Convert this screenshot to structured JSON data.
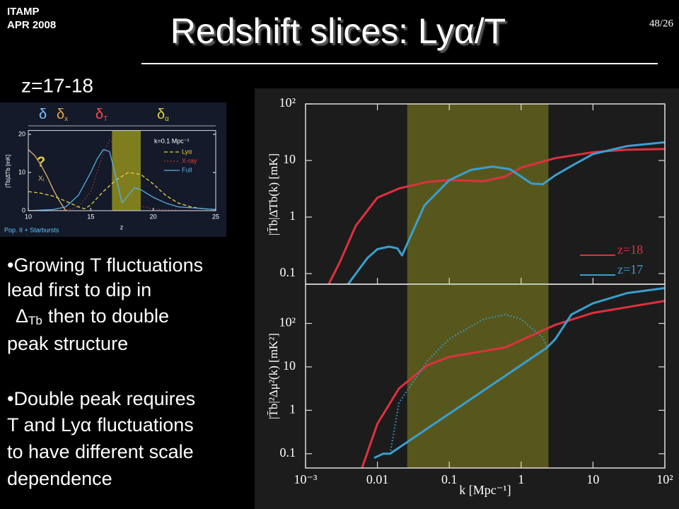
{
  "header": {
    "org": "ITAMP",
    "date": "APR 2008",
    "title": "Redshift slices: Lyα/T",
    "page": "48/26",
    "subtitle": "z=17-18"
  },
  "bullets": [
    {
      "lines": [
        "•Growing T fluctuations",
        "lead first to dip in"
      ],
      "sym": "Δ",
      "sub": "Tb",
      "tail": "then to double",
      "last": "peak structure"
    },
    {
      "first": "•Double peak requires",
      "pre": "T and Ly",
      "sym": "α",
      "post": "fluctuations",
      "lines": [
        "to have different scale",
        "dependence"
      ]
    }
  ],
  "chart_data": [
    {
      "type": "line",
      "xscale": "linear",
      "yscale": "linear",
      "xlim": [
        10,
        25
      ],
      "ylim": [
        0,
        21
      ],
      "xticks": [
        10,
        15,
        20,
        25
      ],
      "yticks": [
        0,
        10,
        20
      ],
      "xlabel": "z",
      "ylabel": "|T̄b|Δ̄Tb [mK]",
      "band": [
        16.7,
        19
      ],
      "band_color": "#8a8a1e",
      "annotations": {
        "k": "k=0.1 Mpc⁻¹",
        "q": "?",
        "xi": "Xᵢ",
        "pop": "Pop. II + Starbursts"
      },
      "greek": [
        {
          "text": "δ",
          "color": "#7fc4ff"
        },
        {
          "text": "δ",
          "sub": "x",
          "color": "#e0a850"
        },
        {
          "text": "δ",
          "sub": "T",
          "color": "#ff4a4a"
        },
        {
          "text": "δ",
          "sub": "α",
          "color": "#e0d040"
        }
      ],
      "series": [
        {
          "color": "#e8b070",
          "style": "solid",
          "x": [
            10,
            10.5,
            11,
            11.5,
            12,
            12.5,
            13
          ],
          "values": [
            16,
            14.5,
            12,
            9,
            5.5,
            2.5,
            0
          ]
        },
        {
          "name": "Lyα",
          "color": "#e8d040",
          "style": "dashed",
          "x": [
            10,
            11,
            12,
            13,
            14,
            14.5,
            15,
            16,
            17,
            18,
            19,
            20,
            21,
            22,
            23,
            24,
            25
          ],
          "values": [
            5,
            4.6,
            3.8,
            2.5,
            1,
            0.5,
            1.5,
            5,
            8,
            10,
            9.5,
            7,
            4,
            2,
            1,
            0.5,
            0.3
          ]
        },
        {
          "name": "X-ray",
          "color": "#e04040",
          "style": "dotted",
          "x": [
            10,
            13,
            14,
            15,
            15.5,
            16,
            16.5,
            17,
            17.5,
            18,
            19,
            20,
            22,
            25
          ],
          "values": [
            0,
            0.2,
            1,
            5,
            10,
            15,
            18.5,
            17,
            10,
            4,
            1.2,
            0.4,
            0.1,
            0
          ]
        },
        {
          "name": "Full",
          "color": "#5aaee0",
          "style": "solid",
          "x": [
            10,
            12,
            13,
            14,
            15,
            15.5,
            16,
            16.5,
            17,
            17.5,
            18,
            18.5,
            19,
            20,
            21,
            22,
            25
          ],
          "values": [
            0,
            0.3,
            1,
            4,
            10,
            13.5,
            16,
            15.5,
            9,
            2,
            4,
            6,
            5.5,
            3.5,
            2,
            1,
            0.3
          ]
        }
      ]
    },
    {
      "type": "line",
      "xscale": "log",
      "yscale": "log",
      "xlim": [
        0.001,
        100
      ],
      "ylim": [
        0.065,
        100
      ],
      "yticks": [
        0.1,
        1,
        10,
        {
          "value": 100,
          "label": "10²"
        }
      ],
      "ylabel": "|T̄b|Δ̄Tb(k) [mK]",
      "band": [
        0.026,
        2.4
      ],
      "band_color": "#5e5e1e",
      "series": [
        {
          "name": "z=18",
          "color": "#e0303f",
          "style": "solid",
          "x": [
            0.0021,
            0.003,
            0.005,
            0.01,
            0.02,
            0.05,
            0.1,
            0.3,
            0.6,
            1,
            3,
            10,
            30,
            100
          ],
          "values": [
            0.065,
            0.16,
            0.7,
            2.2,
            3.2,
            4.2,
            4.5,
            4.3,
            5.2,
            7.5,
            11,
            14,
            15.5,
            16
          ]
        },
        {
          "name": "z=17",
          "color": "#3a9fd0",
          "style": "solid",
          "x": [
            0.0039,
            0.0073,
            0.01,
            0.0145,
            0.019,
            0.022,
            0.045,
            0.1,
            0.2,
            0.4,
            0.7,
            1,
            1.4,
            2,
            3,
            5,
            10,
            30,
            100
          ],
          "values": [
            0.065,
            0.19,
            0.27,
            0.3,
            0.28,
            0.21,
            1.6,
            4.5,
            6.8,
            7.8,
            7,
            5.2,
            3.9,
            3.8,
            5.5,
            8,
            13,
            18,
            21
          ]
        }
      ]
    },
    {
      "type": "line",
      "xscale": "log",
      "yscale": "log",
      "xlim": [
        0.001,
        100
      ],
      "ylim": [
        0.047,
        800
      ],
      "xticks": [
        {
          "value": 0.001,
          "label": "10⁻³"
        },
        0.01,
        0.1,
        1,
        10,
        {
          "value": 100,
          "label": "10²"
        }
      ],
      "yticks": [
        0.1,
        1,
        10,
        {
          "value": 100,
          "label": "10²"
        }
      ],
      "xlabel": "k [Mpc⁻¹]",
      "ylabel": "|T̄b|²Δμ²(k) [mK²]",
      "band": [
        0.026,
        2.4
      ],
      "band_color": "#5e5e1e",
      "series": [
        {
          "color": "#e0303f",
          "style": "solid",
          "x": [
            0.0061,
            0.01,
            0.02,
            0.05,
            0.1,
            0.3,
            0.6,
            1,
            3,
            10,
            100
          ],
          "values": [
            0.047,
            0.49,
            3.2,
            11,
            17,
            23,
            28,
            41,
            93,
            175,
            330
          ]
        },
        {
          "color": "#3a9fd0",
          "style": "solid",
          "x": [
            0.009,
            0.012,
            0.015,
            2.3,
            3,
            5,
            10,
            30,
            100
          ],
          "values": [
            0.08,
            0.1,
            0.1,
            28,
            44,
            160,
            290,
            500,
            650
          ]
        },
        {
          "color": "#3a9fd0",
          "style": "dotted",
          "x": [
            0.015,
            0.02,
            0.05,
            0.1,
            0.3,
            0.6,
            1,
            2,
            2.3
          ],
          "values": [
            0.1,
            1.5,
            14,
            44,
            125,
            160,
            125,
            47,
            28
          ]
        }
      ]
    }
  ]
}
